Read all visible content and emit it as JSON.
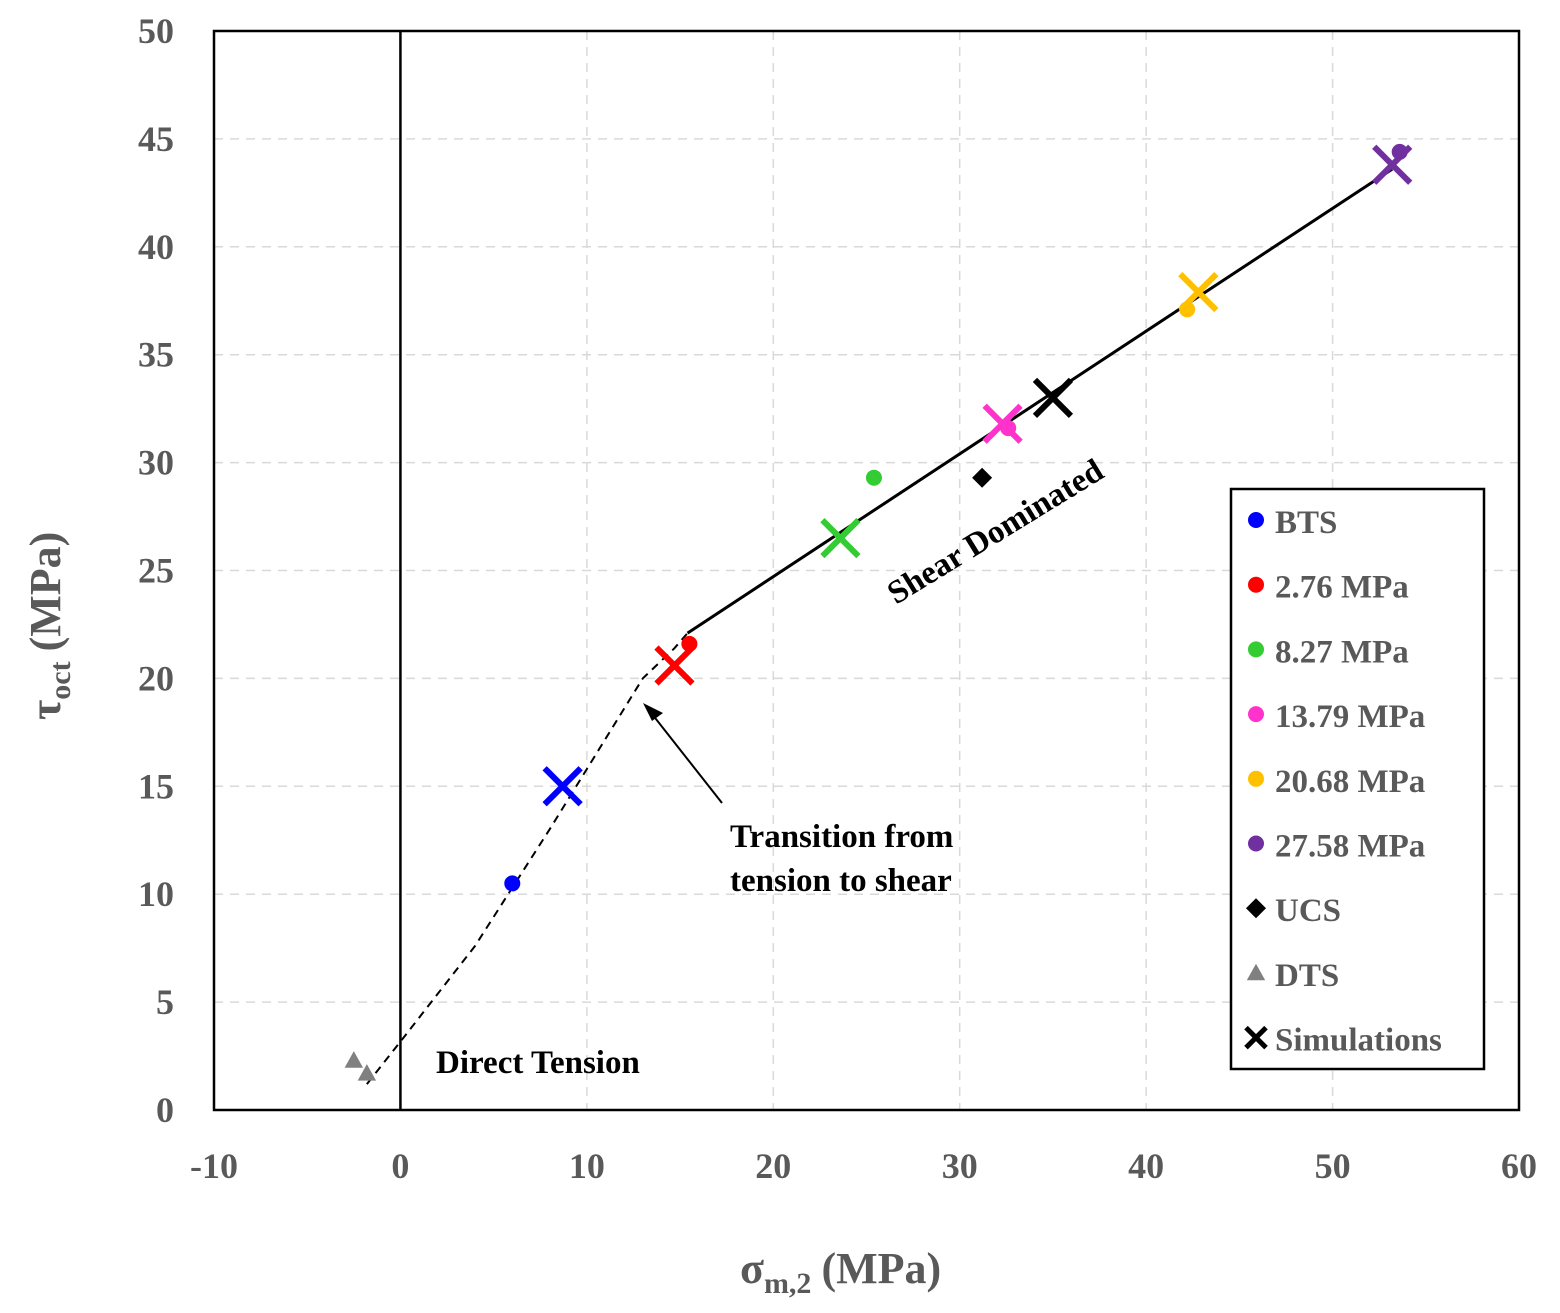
{
  "chart_data": {
    "type": "scatter",
    "xlabel": "σ",
    "xlabel_sub": "m,2",
    "xlabel_unit": "(MPa)",
    "ylabel": "τ",
    "ylabel_sub": "oct",
    "ylabel_unit": "(MPa)",
    "xlim": [
      -10,
      60
    ],
    "ylim": [
      0,
      50
    ],
    "xticks": [
      -10,
      0,
      10,
      20,
      30,
      40,
      50,
      60
    ],
    "yticks": [
      0,
      5,
      10,
      15,
      20,
      25,
      30,
      35,
      40,
      45,
      50
    ],
    "grid": true,
    "legend_position": "right",
    "series": [
      {
        "name": "BTS",
        "marker": "circle",
        "color": "#0000ff",
        "points": [
          [
            6.0,
            10.5
          ]
        ]
      },
      {
        "name": "2.76 MPa",
        "marker": "circle",
        "color": "#ff0000",
        "points": [
          [
            15.5,
            21.6
          ]
        ]
      },
      {
        "name": "8.27 MPa",
        "marker": "circle",
        "color": "#33cc33",
        "points": [
          [
            25.4,
            29.3
          ]
        ]
      },
      {
        "name": "13.79 MPa",
        "marker": "circle",
        "color": "#ff33cc",
        "points": [
          [
            32.6,
            31.6
          ]
        ]
      },
      {
        "name": "20.68 MPa",
        "marker": "circle",
        "color": "#ffc000",
        "points": [
          [
            42.2,
            37.1
          ]
        ]
      },
      {
        "name": "27.58 MPa",
        "marker": "circle",
        "color": "#7030a0",
        "points": [
          [
            53.6,
            44.4
          ]
        ]
      },
      {
        "name": "UCS",
        "marker": "diamond",
        "color": "#000000",
        "points": [
          [
            31.2,
            29.3
          ]
        ]
      },
      {
        "name": "DTS",
        "marker": "triangle",
        "color": "#808080",
        "points": [
          [
            -2.5,
            2.3
          ],
          [
            -1.8,
            1.7
          ]
        ]
      },
      {
        "name": "Simulations",
        "marker": "x",
        "color": "#000000",
        "points": [
          [
            35.0,
            33.0
          ]
        ]
      }
    ],
    "simulations": [
      {
        "x": 8.7,
        "y": 15.0,
        "color": "#0000ff"
      },
      {
        "x": 14.7,
        "y": 20.6,
        "color": "#ff0000"
      },
      {
        "x": 23.6,
        "y": 26.5,
        "color": "#33cc33"
      },
      {
        "x": 32.3,
        "y": 31.8,
        "color": "#ff33cc"
      },
      {
        "x": 35.0,
        "y": 33.0,
        "color": "#000000"
      },
      {
        "x": 42.8,
        "y": 37.9,
        "color": "#ffc000"
      },
      {
        "x": 53.2,
        "y": 43.8,
        "color": "#7030a0"
      }
    ],
    "shear_line": [
      [
        15.4,
        22.1
      ],
      [
        53.2,
        43.6
      ]
    ],
    "transition_curve": [
      [
        -1.8,
        1.2
      ],
      [
        0.3,
        3.5
      ],
      [
        4.0,
        7.6
      ],
      [
        8.0,
        13.0
      ],
      [
        11.0,
        17.2
      ],
      [
        13.0,
        20.0
      ],
      [
        14.7,
        21.4
      ],
      [
        15.4,
        22.1
      ]
    ],
    "vertical_line_x": 0,
    "annotations": {
      "direct_tension": "Direct Tension",
      "transition_line1": "Transition from",
      "transition_line2": "tension to shear",
      "shear_dominated": "Shear Dominated"
    }
  }
}
